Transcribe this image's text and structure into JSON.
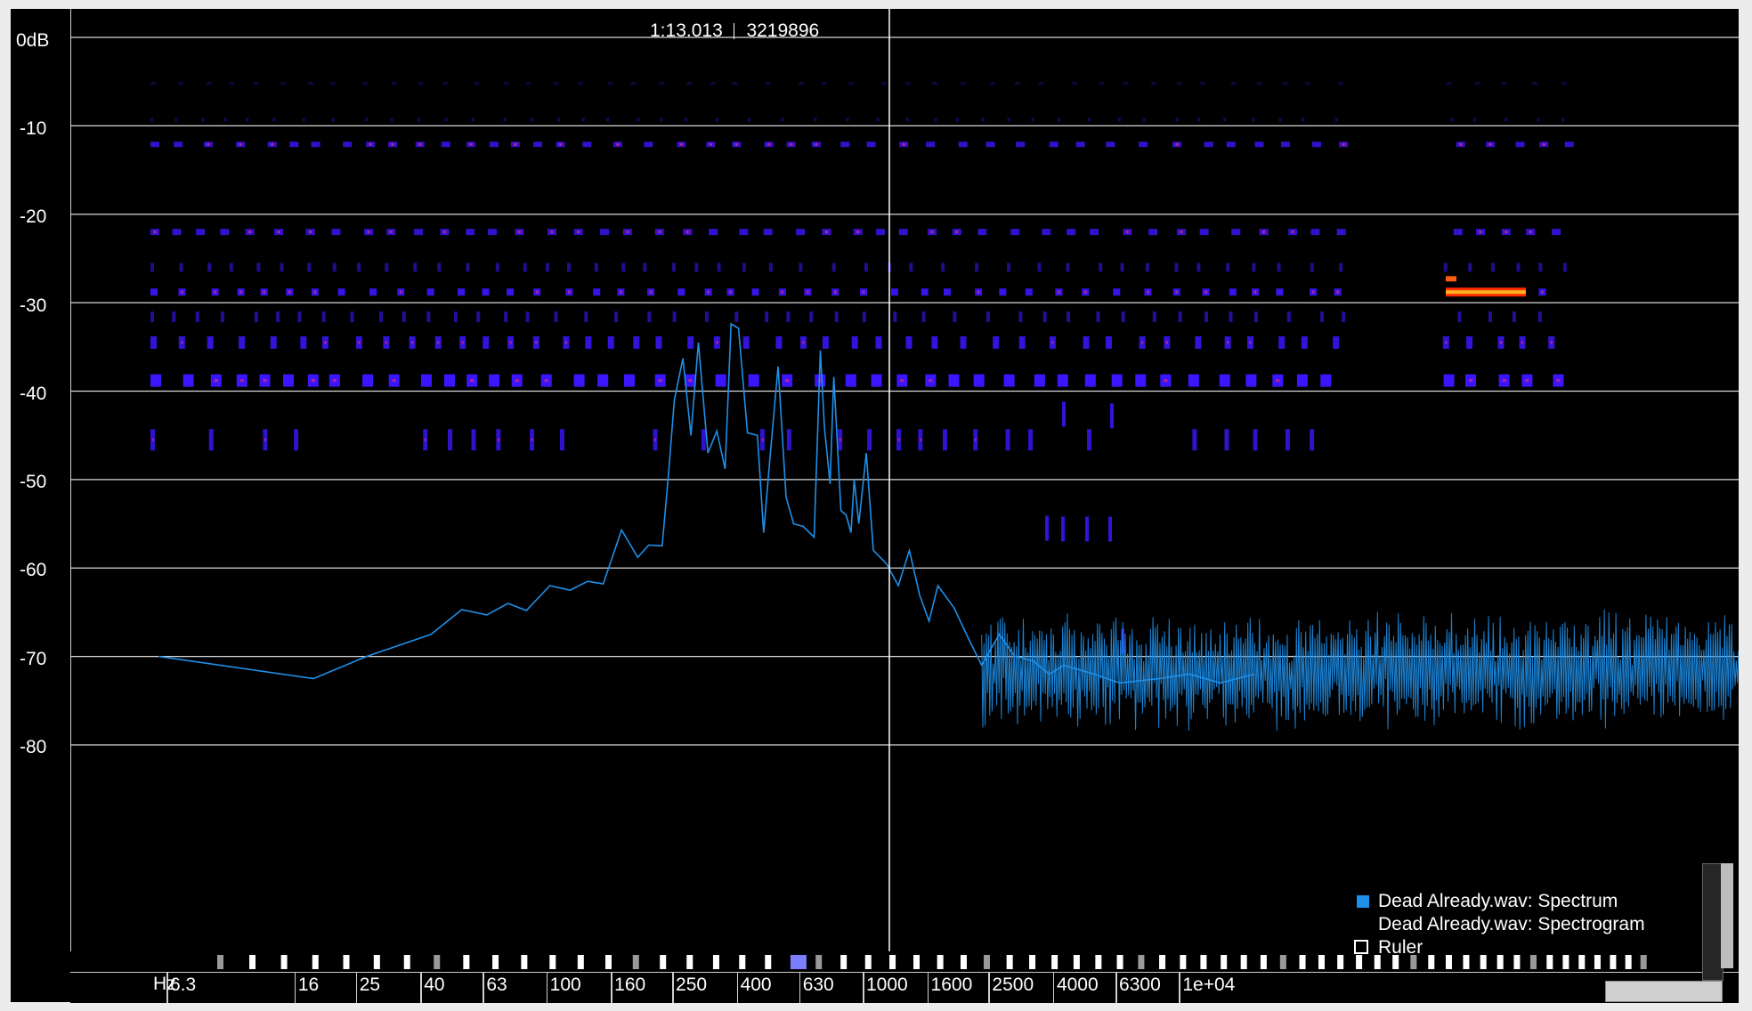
{
  "readout": {
    "time": "1:13.013",
    "sample": "3219896"
  },
  "y_axis": {
    "labels": [
      "0dB",
      "-10",
      "-20",
      "-30",
      "-40",
      "-50",
      "-60",
      "-70",
      "-80"
    ],
    "db_values": [
      0,
      -10,
      -20,
      -30,
      -40,
      -50,
      -60,
      -70,
      -80
    ]
  },
  "x_axis": {
    "unit": "Hz",
    "labels": [
      "6.3",
      "16",
      "25",
      "40",
      "63",
      "100",
      "160",
      "250",
      "400",
      "630",
      "1000",
      "1600",
      "2500",
      "4000",
      "6300",
      "1e+04"
    ],
    "freq_values": [
      6.3,
      16,
      25,
      40,
      63,
      100,
      160,
      250,
      400,
      630,
      1000,
      1600,
      2500,
      4000,
      6300,
      10000
    ],
    "scale": "log"
  },
  "legend": {
    "items": [
      {
        "label": "Dead Already.wav: Spectrum",
        "color": "#1f8fe8",
        "marker": "square"
      },
      {
        "label": "Dead Already.wav: Spectrogram",
        "color": "",
        "marker": "none"
      },
      {
        "label": "Ruler",
        "color": "#ffffff",
        "marker": "checkbox"
      }
    ]
  },
  "colors": {
    "spectrum": "#1f8fe8",
    "grid": "#d8d8d8",
    "background": "#000000",
    "spectrogram_low": "#3a16ff",
    "spectrogram_high": "#ff6a1a"
  },
  "chart_data": {
    "type": "line",
    "title": "",
    "xlabel": "Hz",
    "ylabel": "dB",
    "xscale": "log",
    "xlim": [
      5,
      16000
    ],
    "ylim": [
      -85,
      3
    ],
    "grid": true,
    "legend_position": "bottom-right",
    "series": [
      {
        "name": "Dead Already.wav: Spectrum",
        "x": [
          5.5,
          17,
          25,
          40,
          50,
          60,
          70,
          80,
          95,
          110,
          125,
          140,
          160,
          180,
          195,
          215,
          225,
          235,
          250,
          265,
          280,
          300,
          320,
          340,
          355,
          375,
          400,
          430,
          450,
          470,
          500,
          530,
          560,
          600,
          650,
          680,
          700,
          730,
          750,
          790,
          820,
          850,
          870,
          900,
          950,
          1000,
          1100,
          1200,
          1300,
          1400,
          1500,
          1600,
          1800,
          2000,
          2200,
          2500,
          2800,
          3200,
          3600,
          4000,
          5000,
          6000,
          8000,
          10000,
          12500,
          16000
        ],
        "y": [
          -70,
          -72.5,
          -70,
          -67.5,
          -64.7,
          -65.3,
          -64,
          -64.8,
          -62,
          -62.5,
          -61.5,
          -61.8,
          -55.7,
          -58.8,
          -57.4,
          -57.5,
          -49.5,
          -41,
          -36.3,
          -45,
          -34.5,
          -47,
          -44.5,
          -48.8,
          -32.4,
          -32.9,
          -44.7,
          -45,
          -56,
          -48,
          -37.2,
          -52,
          -55,
          -55.3,
          -56.5,
          -35.4,
          -44,
          -50.5,
          -38.4,
          -53.5,
          -54,
          -56,
          -50,
          -55,
          -47,
          -58,
          -59.5,
          -62,
          -58,
          -63,
          -66,
          -62,
          -64.5,
          -68,
          -71,
          -67.5,
          -70,
          -70.5,
          -72,
          -71,
          -72,
          -73,
          -72.5,
          -72,
          -73,
          -72
        ]
      }
    ]
  }
}
